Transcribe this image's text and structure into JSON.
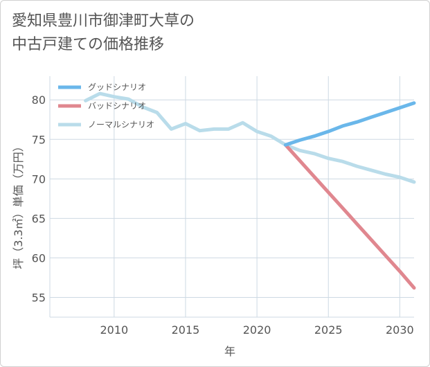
{
  "title_line1": "愛知県豊川市御津町大草の",
  "title_line2": "中古戸建ての価格推移",
  "colors": {
    "good": "#6ab7ea",
    "bad": "#e0878f",
    "normal": "#b9dcea",
    "grid": "#cdd9e3"
  },
  "chart_data": {
    "type": "line",
    "title": "愛知県豊川市御津町大草の中古戸建ての価格推移",
    "xlabel": "年",
    "ylabel": "坪（3.3㎡）単価（万円）",
    "xlim": [
      2005.5,
      2031
    ],
    "ylim": [
      52.5,
      83
    ],
    "xticks": [
      2010,
      2015,
      2020,
      2025,
      2030
    ],
    "yticks": [
      55,
      60,
      65,
      70,
      75,
      80
    ],
    "grid": true,
    "legend_position": "top-left",
    "series": [
      {
        "name": "グッドシナリオ",
        "color": "#6ab7ea",
        "points": [
          [
            2022,
            74.3
          ],
          [
            2023,
            74.9
          ],
          [
            2024,
            75.4
          ],
          [
            2025,
            76.0
          ],
          [
            2026,
            76.7
          ],
          [
            2027,
            77.2
          ],
          [
            2028,
            77.8
          ],
          [
            2029,
            78.4
          ],
          [
            2030,
            79.0
          ],
          [
            2031,
            79.6
          ]
        ]
      },
      {
        "name": "バッドシナリオ",
        "color": "#e0878f",
        "points": [
          [
            2022,
            74.3
          ],
          [
            2023,
            72.3
          ],
          [
            2024,
            70.3
          ],
          [
            2025,
            68.3
          ],
          [
            2026,
            66.3
          ],
          [
            2027,
            64.3
          ],
          [
            2028,
            62.3
          ],
          [
            2029,
            60.3
          ],
          [
            2030,
            58.3
          ],
          [
            2031,
            56.2
          ]
        ]
      },
      {
        "name": "ノーマルシナリオ",
        "color": "#b9dcea",
        "points": [
          [
            2008,
            79.9
          ],
          [
            2009,
            80.8
          ],
          [
            2010,
            80.4
          ],
          [
            2011,
            80.1
          ],
          [
            2012,
            79.1
          ],
          [
            2013,
            78.4
          ],
          [
            2014,
            76.3
          ],
          [
            2015,
            77.0
          ],
          [
            2016,
            76.1
          ],
          [
            2017,
            76.3
          ],
          [
            2018,
            76.3
          ],
          [
            2019,
            77.1
          ],
          [
            2020,
            76.0
          ],
          [
            2021,
            75.4
          ],
          [
            2022,
            74.3
          ],
          [
            2023,
            73.6
          ],
          [
            2024,
            73.2
          ],
          [
            2025,
            72.6
          ],
          [
            2026,
            72.2
          ],
          [
            2027,
            71.6
          ],
          [
            2028,
            71.1
          ],
          [
            2029,
            70.6
          ],
          [
            2030,
            70.2
          ],
          [
            2031,
            69.6
          ]
        ]
      }
    ]
  }
}
